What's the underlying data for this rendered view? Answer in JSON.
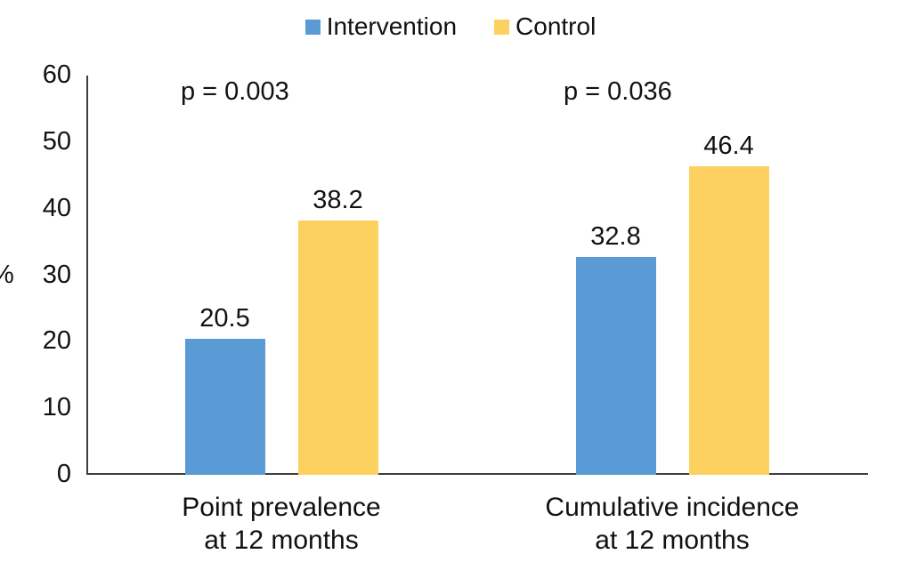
{
  "chart_data": {
    "type": "bar",
    "title": "",
    "ylabel": "%",
    "xlabel": "",
    "ylim": [
      0,
      60
    ],
    "yticks": [
      0,
      10,
      20,
      30,
      40,
      50,
      60
    ],
    "grid": false,
    "legend_position": "top",
    "categories": [
      [
        "Point prevalence",
        "at 12 months"
      ],
      [
        "Cumulative incidence",
        "at 12 months"
      ]
    ],
    "series": [
      {
        "name": "Intervention",
        "color": "#5B9BD5",
        "values": [
          20.5,
          32.8
        ]
      },
      {
        "name": "Control",
        "color": "#FCD160",
        "values": [
          38.2,
          46.4
        ]
      }
    ],
    "value_labels": [
      [
        "20.5",
        "32.8"
      ],
      [
        "38.2",
        "46.4"
      ]
    ],
    "annotations": [
      {
        "text": "p = 0.003",
        "group_index": 0
      },
      {
        "text": "p = 0.036",
        "group_index": 1
      }
    ],
    "axis_color": "#3f3f3f",
    "text_color": "#111111"
  }
}
